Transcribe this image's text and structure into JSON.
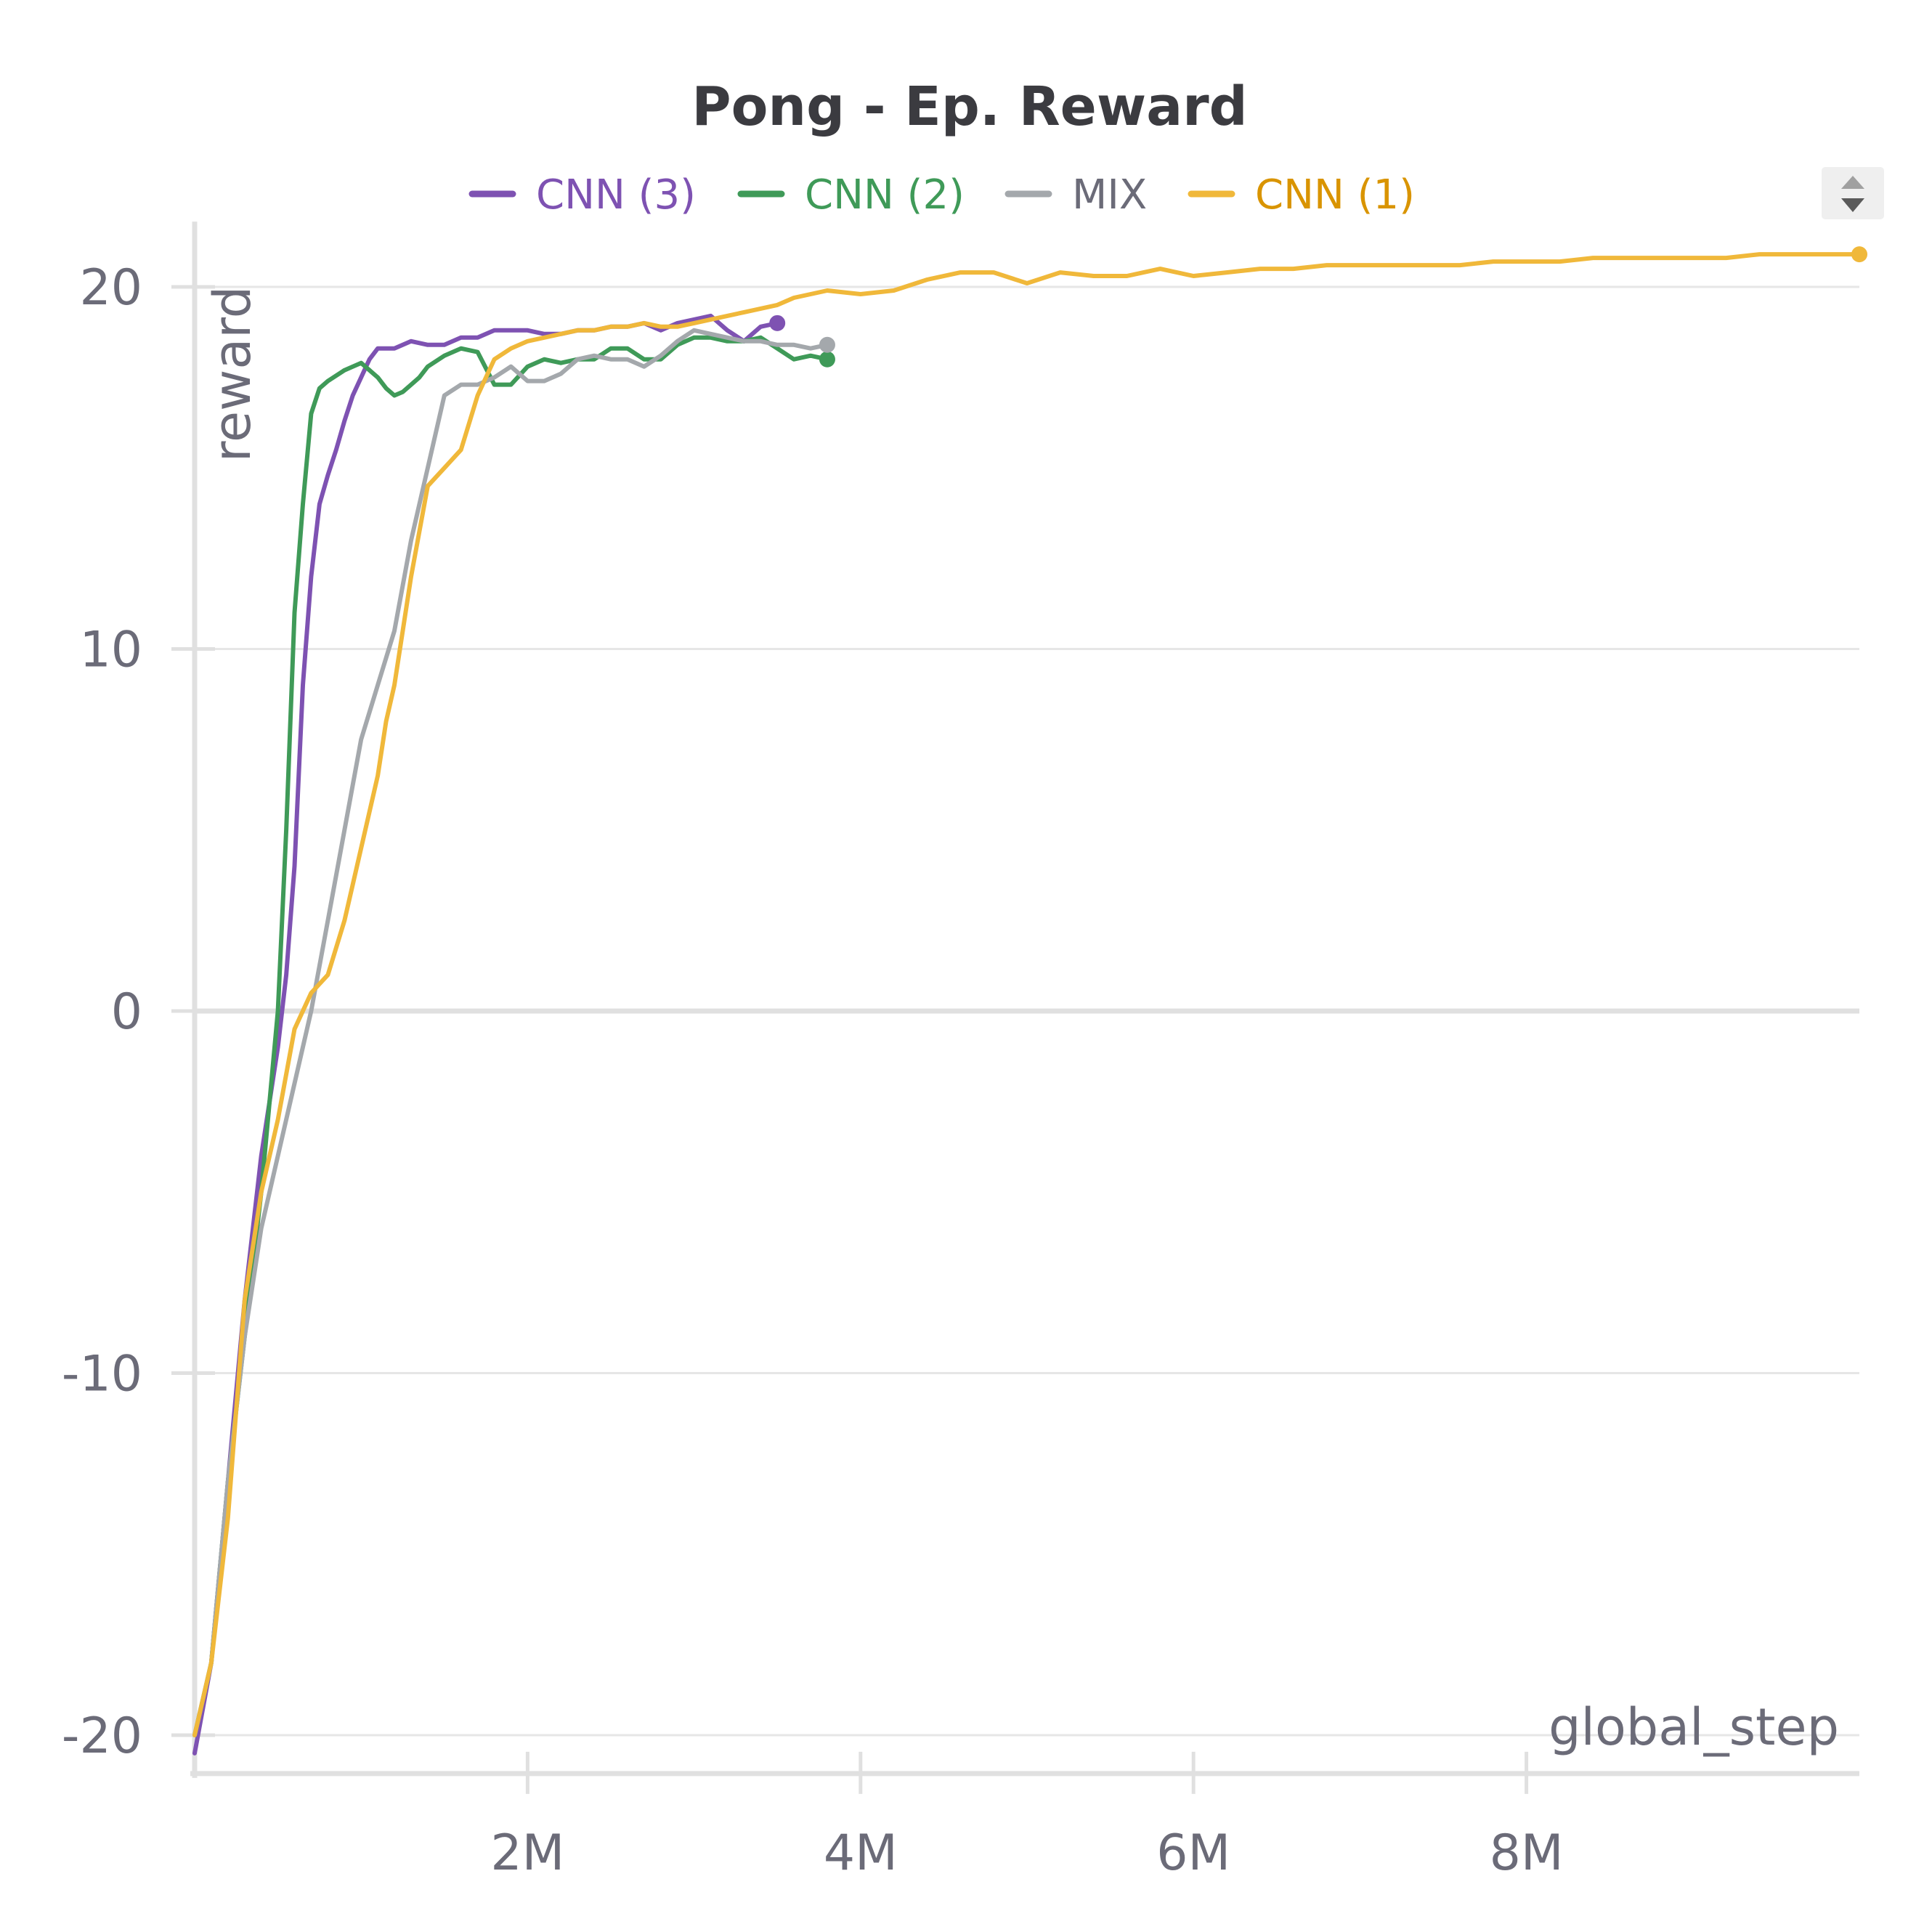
{
  "colors": {
    "cnn3": "#7e52b2",
    "cnn2": "#3f9a58",
    "mix": "#a4a8ac",
    "cnn1": "#f0b83a",
    "cnn1_legend": "#d99400",
    "title": "#3b3b40",
    "axis_text": "#6b6b78"
  },
  "ui": {
    "sort_control_icon": "sort-up-down-icon"
  },
  "chart_data": {
    "type": "line",
    "title": "Pong - Ep. Reward",
    "xlabel": "global_step",
    "ylabel": "reward",
    "xlim": [
      0,
      10000000
    ],
    "ylim": [
      -21,
      21
    ],
    "grid": true,
    "legend_position": "top",
    "x_ticks": [
      {
        "value": 2000000,
        "label": "2M"
      },
      {
        "value": 4000000,
        "label": "4M"
      },
      {
        "value": 6000000,
        "label": "6M"
      },
      {
        "value": 8000000,
        "label": "8M"
      }
    ],
    "y_ticks": [
      {
        "value": 20,
        "label": "20"
      },
      {
        "value": 10,
        "label": "10"
      },
      {
        "value": 0,
        "label": "0"
      },
      {
        "value": -10,
        "label": "-10"
      },
      {
        "value": -20,
        "label": "-20"
      }
    ],
    "series": [
      {
        "name": "CNN (3)",
        "color": "#7e52b2",
        "x": [
          0,
          100000,
          200000,
          300000,
          400000,
          500000,
          550000,
          600000,
          650000,
          700000,
          750000,
          800000,
          850000,
          900000,
          950000,
          1000000,
          1050000,
          1100000,
          1150000,
          1200000,
          1300000,
          1400000,
          1500000,
          1600000,
          1700000,
          1800000,
          1900000,
          2000000,
          2100000,
          2200000,
          2300000,
          2400000,
          2500000,
          2600000,
          2700000,
          2800000,
          2900000,
          3000000,
          3100000,
          3200000,
          3300000,
          3400000,
          3500000
        ],
        "y": [
          -20.5,
          -18,
          -13,
          -8,
          -4,
          -1,
          1,
          4,
          9,
          12,
          14,
          14.8,
          15.5,
          16.3,
          17,
          17.5,
          18,
          18.3,
          18.3,
          18.3,
          18.5,
          18.4,
          18.4,
          18.6,
          18.6,
          18.8,
          18.8,
          18.8,
          18.7,
          18.7,
          18.8,
          18.8,
          18.9,
          18.9,
          19,
          18.8,
          19,
          19.1,
          19.2,
          18.8,
          18.5,
          18.9,
          19
        ]
      },
      {
        "name": "CNN (2)",
        "color": "#3f9a58",
        "x": [
          0,
          100000,
          200000,
          300000,
          400000,
          500000,
          550000,
          600000,
          650000,
          700000,
          750000,
          800000,
          900000,
          1000000,
          1050000,
          1100000,
          1150000,
          1200000,
          1250000,
          1300000,
          1350000,
          1400000,
          1500000,
          1600000,
          1700000,
          1800000,
          1900000,
          2000000,
          2100000,
          2200000,
          2300000,
          2400000,
          2500000,
          2600000,
          2700000,
          2800000,
          2900000,
          3000000,
          3100000,
          3200000,
          3300000,
          3400000,
          3500000,
          3600000,
          3700000,
          3800000
        ],
        "y": [
          -20,
          -18,
          -13,
          -9,
          -5,
          0,
          5,
          11,
          14,
          16.5,
          17.2,
          17.4,
          17.7,
          17.9,
          17.7,
          17.5,
          17.2,
          17,
          17.1,
          17.3,
          17.5,
          17.8,
          18.1,
          18.3,
          18.2,
          17.3,
          17.3,
          17.8,
          18,
          17.9,
          18,
          18,
          18.3,
          18.3,
          18,
          18,
          18.4,
          18.6,
          18.6,
          18.5,
          18.5,
          18.6,
          18.3,
          18,
          18.1,
          18
        ]
      },
      {
        "name": "MIX",
        "color": "#a4a8ac",
        "x": [
          0,
          100000,
          200000,
          300000,
          400000,
          500000,
          600000,
          700000,
          800000,
          900000,
          1000000,
          1100000,
          1200000,
          1300000,
          1400000,
          1500000,
          1600000,
          1700000,
          1800000,
          1900000,
          2000000,
          2100000,
          2200000,
          2300000,
          2400000,
          2500000,
          2600000,
          2700000,
          2800000,
          2900000,
          3000000,
          3100000,
          3200000,
          3300000,
          3400000,
          3500000,
          3600000,
          3700000,
          3800000
        ],
        "y": [
          -20,
          -18,
          -13,
          -9,
          -6,
          -4,
          -2,
          0,
          2.5,
          5,
          7.5,
          9,
          10.5,
          13,
          15,
          17,
          17.3,
          17.3,
          17.5,
          17.8,
          17.4,
          17.4,
          17.6,
          18,
          18.1,
          18,
          18,
          17.8,
          18.1,
          18.5,
          18.8,
          18.7,
          18.6,
          18.5,
          18.5,
          18.4,
          18.4,
          18.3,
          18.4
        ]
      },
      {
        "name": "CNN (1)",
        "color": "#f0b83a",
        "x": [
          0,
          100000,
          200000,
          300000,
          400000,
          500000,
          600000,
          700000,
          800000,
          900000,
          1000000,
          1100000,
          1150000,
          1200000,
          1300000,
          1400000,
          1500000,
          1600000,
          1700000,
          1800000,
          1900000,
          2000000,
          2100000,
          2200000,
          2300000,
          2400000,
          2500000,
          2600000,
          2700000,
          2800000,
          2900000,
          3000000,
          3100000,
          3200000,
          3300000,
          3400000,
          3500000,
          3600000,
          3800000,
          4000000,
          4200000,
          4400000,
          4600000,
          4800000,
          5000000,
          5200000,
          5400000,
          5600000,
          5800000,
          6000000,
          6200000,
          6400000,
          6600000,
          6800000,
          7000000,
          7200000,
          7400000,
          7600000,
          7800000,
          8000000,
          8200000,
          8400000,
          8600000,
          8800000,
          9000000,
          9200000,
          9400000,
          9600000,
          9800000,
          10000000
        ],
        "y": [
          -20,
          -18,
          -14,
          -8,
          -5,
          -3,
          -0.5,
          0.5,
          1,
          2.5,
          4.5,
          6.5,
          8,
          9,
          12,
          14.5,
          15,
          15.5,
          17,
          18,
          18.3,
          18.5,
          18.6,
          18.7,
          18.8,
          18.8,
          18.9,
          18.9,
          19,
          18.9,
          18.9,
          19,
          19.1,
          19.2,
          19.3,
          19.4,
          19.5,
          19.7,
          19.9,
          19.8,
          19.9,
          20.2,
          20.4,
          20.4,
          20.1,
          20.4,
          20.3,
          20.3,
          20.5,
          20.3,
          20.4,
          20.5,
          20.5,
          20.6,
          20.6,
          20.6,
          20.6,
          20.6,
          20.7,
          20.7,
          20.7,
          20.8,
          20.8,
          20.8,
          20.8,
          20.8,
          20.9,
          20.9,
          20.9,
          20.9
        ]
      }
    ]
  }
}
